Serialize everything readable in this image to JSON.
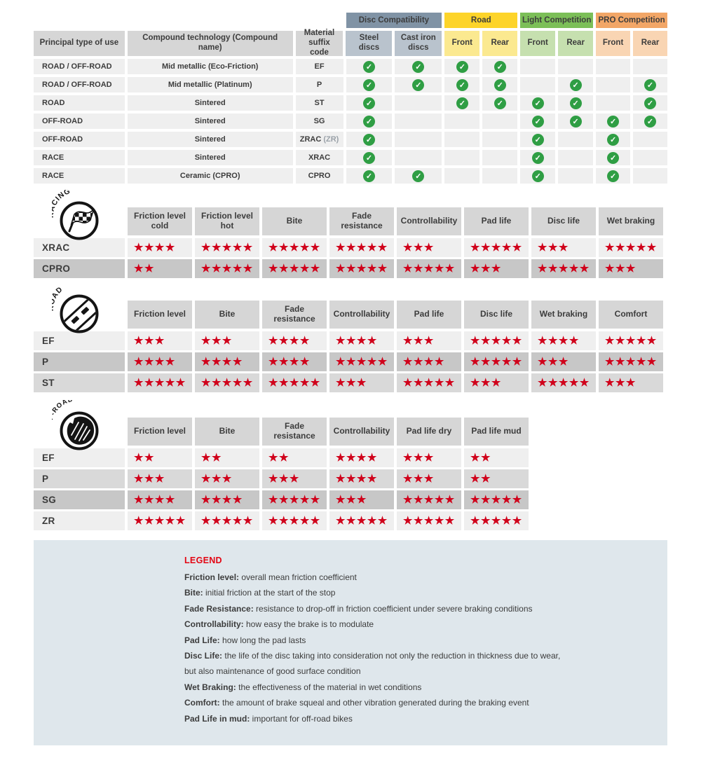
{
  "colors": {
    "star_red": "#d0021b",
    "check_green": "#2f9e44",
    "header_cell_gray": "#d6d6d6",
    "row_light": "#efefef",
    "row_medium": "#d9d9d9",
    "row_dark": "#c7c7c7",
    "legend_bg": "#dfe7ec"
  },
  "compat_table": {
    "col_headers": [
      "Principal type of use",
      "Compound technology (Compound name)",
      "Material suffix code"
    ],
    "groups": [
      {
        "label": "Disc Compatibility",
        "color": "#8093a5",
        "light": "#b9c3cd",
        "cols": [
          "Steel discs",
          "Cast iron discs"
        ]
      },
      {
        "label": "Road",
        "color": "#fdd42a",
        "light": "#fbe990",
        "cols": [
          "Front",
          "Rear"
        ]
      },
      {
        "label": "Light Competition",
        "color": "#7cbf58",
        "light": "#c6e0af",
        "cols": [
          "Front",
          "Rear"
        ]
      },
      {
        "label": "PRO Competition",
        "color": "#f2a667",
        "light": "#f9d5b3",
        "cols": [
          "Front",
          "Rear"
        ]
      }
    ],
    "rows": [
      {
        "use": "ROAD / OFF-ROAD",
        "tech": "Mid metallic (Eco-Friction)",
        "code": "EF",
        "code_suffix": "",
        "checks": [
          1,
          1,
          1,
          1,
          0,
          0,
          0,
          0
        ]
      },
      {
        "use": "ROAD / OFF-ROAD",
        "tech": "Mid metallic (Platinum)",
        "code": "P",
        "code_suffix": "",
        "checks": [
          1,
          1,
          1,
          1,
          0,
          1,
          0,
          1
        ]
      },
      {
        "use": "ROAD",
        "tech": "Sintered",
        "code": "ST",
        "code_suffix": "",
        "checks": [
          1,
          0,
          1,
          1,
          1,
          1,
          0,
          1
        ]
      },
      {
        "use": "OFF-ROAD",
        "tech": "Sintered",
        "code": "SG",
        "code_suffix": "",
        "checks": [
          1,
          0,
          0,
          0,
          1,
          1,
          1,
          1
        ]
      },
      {
        "use": "OFF-ROAD",
        "tech": "Sintered",
        "code": "ZRAC",
        "code_suffix": "(ZR)",
        "checks": [
          1,
          0,
          0,
          0,
          1,
          0,
          1,
          0
        ]
      },
      {
        "use": "RACE",
        "tech": "Sintered",
        "code": "XRAC",
        "code_suffix": "",
        "checks": [
          1,
          0,
          0,
          0,
          1,
          0,
          1,
          0
        ]
      },
      {
        "use": "RACE",
        "tech": "Ceramic (CPRO)",
        "code": "CPRO",
        "code_suffix": "",
        "checks": [
          1,
          1,
          0,
          0,
          1,
          0,
          1,
          0
        ]
      }
    ]
  },
  "rating_tables": [
    {
      "id": "racing",
      "icon_label": "RACING",
      "columns": [
        "Friction level cold",
        "Friction level hot",
        "Bite",
        "Fade resistance",
        "Controllability",
        "Pad life",
        "Disc life",
        "Wet braking"
      ],
      "rows": [
        {
          "label": "XRAC",
          "shade": "light",
          "stars": [
            4,
            5,
            5,
            5,
            3,
            5,
            3,
            5
          ]
        },
        {
          "label": "CPRO",
          "shade": "dark",
          "stars": [
            2,
            5,
            5,
            5,
            5,
            3,
            5,
            3
          ]
        }
      ]
    },
    {
      "id": "road",
      "icon_label": "ROAD",
      "columns": [
        "Friction level",
        "Bite",
        "Fade resistance",
        "Controllability",
        "Pad life",
        "Disc life",
        "Wet braking",
        "Comfort"
      ],
      "rows": [
        {
          "label": "EF",
          "shade": "light",
          "stars": [
            3,
            3,
            4,
            4,
            3,
            5,
            4,
            5
          ]
        },
        {
          "label": "P",
          "shade": "dark",
          "stars": [
            4,
            4,
            4,
            5,
            4,
            5,
            3,
            5
          ]
        },
        {
          "label": "ST",
          "shade": "medium",
          "stars": [
            5,
            5,
            5,
            3,
            5,
            3,
            5,
            3
          ]
        }
      ]
    },
    {
      "id": "offroad",
      "icon_label": "OFF-ROAD",
      "columns": [
        "Friction level",
        "Bite",
        "Fade resistance",
        "Controllability",
        "Pad life dry",
        "Pad life mud"
      ],
      "rows": [
        {
          "label": "EF",
          "shade": "light",
          "stars": [
            2,
            2,
            2,
            4,
            3,
            2
          ]
        },
        {
          "label": "P",
          "shade": "medium",
          "stars": [
            3,
            3,
            3,
            4,
            3,
            2
          ]
        },
        {
          "label": "SG",
          "shade": "dark",
          "stars": [
            4,
            4,
            5,
            3,
            5,
            5
          ]
        },
        {
          "label": "ZR",
          "shade": "light",
          "stars": [
            5,
            5,
            5,
            5,
            5,
            5
          ]
        }
      ]
    }
  ],
  "legend": {
    "title": "LEGEND",
    "entries": [
      {
        "term": "Friction level:",
        "desc": "overall mean friction coefficient"
      },
      {
        "term": "Bite:",
        "desc": "initial friction at the start of the stop"
      },
      {
        "term": "Fade Resistance:",
        "desc": "resistance to drop-off in friction coefficient under severe braking conditions"
      },
      {
        "term": "Controllability:",
        "desc": "how easy the brake is to modulate"
      },
      {
        "term": "Pad Life:",
        "desc": "how long the pad lasts"
      },
      {
        "term": "Disc Life:",
        "desc": "the life of the disc taking into consideration not only the reduction in thickness due to wear,"
      },
      {
        "term": "",
        "desc": "but also maintenance of good surface condition"
      },
      {
        "term": "Wet Braking:",
        "desc": "the effectiveness of the material in wet conditions"
      },
      {
        "term": "Comfort:",
        "desc": "the amount of brake squeal and other vibration generated during the braking event"
      },
      {
        "term": "Pad Life in mud:",
        "desc": "important for off-road bikes"
      }
    ]
  }
}
